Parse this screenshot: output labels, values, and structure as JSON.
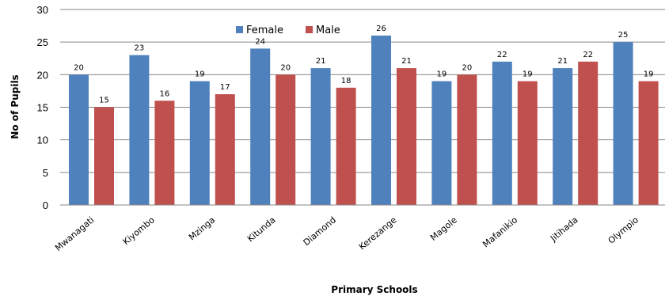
{
  "chart_data": {
    "type": "bar",
    "categories": [
      "Mwanagati",
      "Kiyombo",
      "Mzinga",
      "Kitunda",
      "Diamond",
      "Kerezange",
      "Magole",
      "Mafanikio",
      "Jitihada",
      "Olympio"
    ],
    "series": [
      {
        "name": "Female",
        "color": "#4F81BD",
        "values": [
          20,
          23,
          19,
          24,
          21,
          26,
          19,
          22,
          21,
          25
        ]
      },
      {
        "name": "Male",
        "color": "#C0504D",
        "values": [
          15,
          16,
          17,
          20,
          18,
          21,
          20,
          19,
          22,
          19
        ]
      }
    ],
    "xlabel": "Primary Schools",
    "ylabel": "No of Pupils",
    "ylim": [
      0,
      30
    ],
    "yticks": [
      0,
      5,
      10,
      15,
      20,
      25,
      30
    ],
    "grid": true,
    "legend": "top-center",
    "data_labels": true
  }
}
